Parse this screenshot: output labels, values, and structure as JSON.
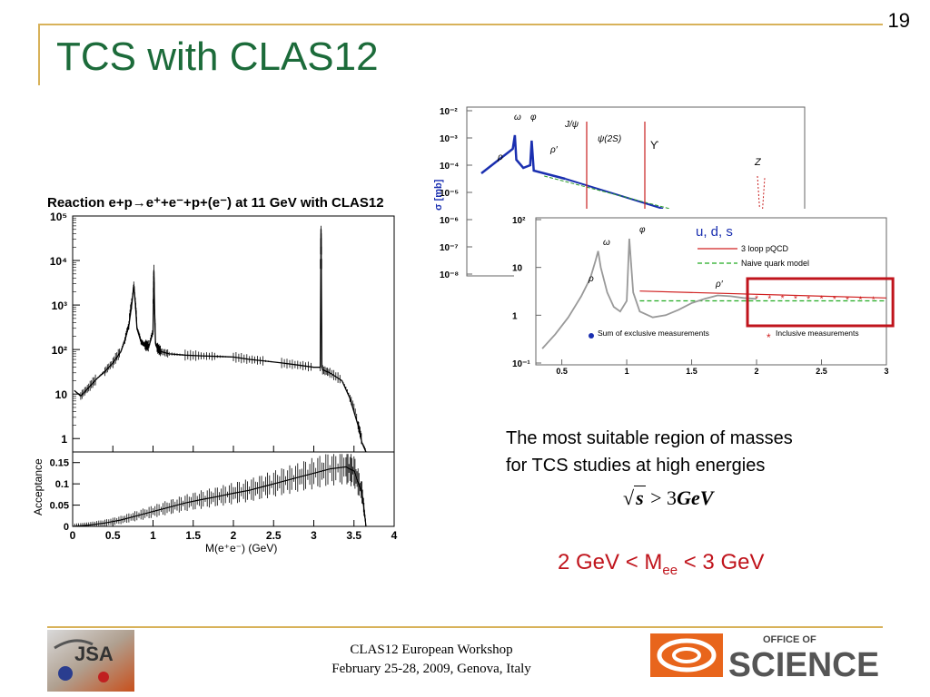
{
  "slide": {
    "number": "19",
    "title": "TCS with CLAS12",
    "caption_line1": "The most suitable region of masses",
    "caption_line2": "for TCS studies at high energies",
    "formula_s": "s",
    "formula_rel": " > 3",
    "formula_unit": "GeV",
    "mass_range_prefix": "2 GeV < M",
    "mass_range_sub": "ee",
    "mass_range_suffix": " < 3 GeV",
    "footer_line1": "CLAS12 European Workshop",
    "footer_line2": "February 25-28, 2009, Genova, Italy",
    "logo_left_text": "JSA",
    "logo_right_top": "OFFICE OF",
    "logo_right_big": "SCIENCE",
    "accent_color": "#1c6b3a",
    "line_color": "#d8b25a",
    "highlight_color": "#c0141c"
  },
  "chart_data": [
    {
      "type": "line",
      "title": "Reaction e+p→e⁺+e⁻+p+(e⁻) at 11 GeV with CLAS12",
      "xlabel": "M(e⁺e⁻) (GeV)",
      "ylabel": "",
      "x_ticks": [
        "0",
        "0.5",
        "1",
        "1.5",
        "2",
        "2.5",
        "3",
        "3.5",
        "4"
      ],
      "y_ticks": [
        "1",
        "10",
        "10²",
        "10³",
        "10⁴",
        "10⁵"
      ],
      "y_scale": "log",
      "xlim": [
        0,
        4
      ],
      "ylim": [
        0.5,
        100000
      ],
      "series": [
        {
          "x": [
            0.02,
            0.1,
            0.2,
            0.3,
            0.4,
            0.5,
            0.6,
            0.65,
            0.7,
            0.74,
            0.76,
            0.78,
            0.8,
            0.85,
            0.9,
            0.95,
            1.0,
            1.01,
            1.02,
            1.03,
            1.05,
            1.1,
            1.2,
            1.4,
            1.6,
            1.8,
            2.0,
            2.2,
            2.4,
            2.6,
            2.8,
            3.0,
            3.08,
            3.09,
            3.1,
            3.11,
            3.2,
            3.35,
            3.45,
            3.55,
            3.6,
            3.65
          ],
          "y": [
            12,
            9,
            14,
            22,
            32,
            50,
            90,
            160,
            350,
            1200,
            2800,
            1100,
            300,
            150,
            125,
            120,
            250,
            6000,
            700,
            140,
            110,
            90,
            80,
            75,
            72,
            70,
            68,
            60,
            55,
            50,
            45,
            40,
            40,
            50000,
            40,
            35,
            30,
            20,
            8,
            2,
            0.8,
            0.5
          ]
        }
      ]
    },
    {
      "type": "line",
      "title": "",
      "xlabel": "",
      "ylabel": "Acceptance",
      "x_ticks": [
        "0",
        "0.5",
        "1",
        "1.5",
        "2",
        "2.5",
        "3",
        "3.5",
        "4"
      ],
      "y_ticks": [
        "0",
        "0.05",
        "0.1",
        "0.15"
      ],
      "xlim": [
        0,
        4
      ],
      "ylim": [
        0,
        0.175
      ],
      "series": [
        {
          "x": [
            0.0,
            0.2,
            0.4,
            0.6,
            0.8,
            1.0,
            1.2,
            1.4,
            1.6,
            1.8,
            2.0,
            2.2,
            2.4,
            2.6,
            2.8,
            3.0,
            3.2,
            3.4,
            3.5,
            3.6,
            3.65
          ],
          "y": [
            0.0,
            0.003,
            0.008,
            0.015,
            0.025,
            0.035,
            0.045,
            0.055,
            0.063,
            0.07,
            0.078,
            0.085,
            0.095,
            0.105,
            0.115,
            0.125,
            0.135,
            0.14,
            0.13,
            0.08,
            0.0
          ]
        }
      ]
    },
    {
      "type": "line",
      "title": "",
      "xlabel": "",
      "ylabel": "σ [mb]",
      "y_ticks": [
        "10⁻²",
        "10⁻³",
        "10⁻⁴",
        "10⁻⁵",
        "10⁻⁶",
        "10⁻⁷",
        "10⁻⁸"
      ],
      "y_scale": "log",
      "annotations": [
        "ω",
        "φ",
        "J/ψ",
        "ψ(2S)",
        "ϒ",
        "ρ",
        "ρ′",
        "Z"
      ],
      "series": [
        {
          "x": [
            0.3,
            0.4,
            0.5,
            0.6,
            0.7,
            0.75,
            0.78,
            0.8,
            0.9,
            1.0,
            1.02,
            1.05,
            1.2,
            1.5
          ],
          "y": [
            -4.3,
            -4.1,
            -3.9,
            -3.7,
            -3.5,
            -3.4,
            -2.9,
            -3.8,
            -4.1,
            -4.0,
            -3.1,
            -4.2,
            -4.3,
            -4.5
          ]
        }
      ]
    },
    {
      "type": "line",
      "title": "u, d, s",
      "xlabel": "",
      "ylabel": "",
      "x_ticks": [
        "0.5",
        "1",
        "1.5",
        "2",
        "2.5",
        "3"
      ],
      "y_ticks": [
        "10²",
        "10",
        "1",
        "10⁻¹"
      ],
      "y_scale": "log",
      "xlim": [
        0.3,
        3
      ],
      "legend": [
        "3 loop pQCD",
        "Naive quark model"
      ],
      "legend_position": "top-right",
      "annotations": [
        "ω",
        "φ",
        "ρ",
        "ρ′"
      ],
      "bottom_legend": [
        "Sum of exclusive measurements",
        "Inclusive measurements"
      ],
      "series": [
        {
          "name": "Sum of exclusive measurements",
          "x": [
            0.35,
            0.45,
            0.55,
            0.65,
            0.72,
            0.76,
            0.78,
            0.8,
            0.85,
            0.9,
            0.95,
            1.0,
            1.02,
            1.05,
            1.1,
            1.2,
            1.3,
            1.4,
            1.5,
            1.6,
            1.7,
            1.8,
            1.9,
            2.0
          ],
          "y": [
            0.2,
            0.4,
            0.9,
            2.5,
            6,
            14,
            22,
            10,
            3,
            1.5,
            1.2,
            2,
            40,
            3,
            1.2,
            0.9,
            1,
            1.3,
            1.8,
            2.2,
            2.6,
            2.5,
            2.3,
            2.2
          ]
        },
        {
          "name": "Inclusive measurements",
          "x": [
            2.0,
            2.1,
            2.2,
            2.3,
            2.4,
            2.5,
            2.6,
            2.7,
            2.8,
            2.9
          ],
          "y": [
            2.3,
            2.3,
            2.35,
            2.3,
            2.25,
            2.3,
            2.25,
            2.2,
            2.2,
            2.2
          ]
        },
        {
          "name": "3 loop pQCD",
          "x": [
            1.1,
            3.0
          ],
          "y": [
            3.2,
            2.3
          ]
        },
        {
          "name": "Naive quark model",
          "x": [
            1.1,
            3.0
          ],
          "y": [
            2.0,
            2.0
          ]
        }
      ]
    }
  ]
}
